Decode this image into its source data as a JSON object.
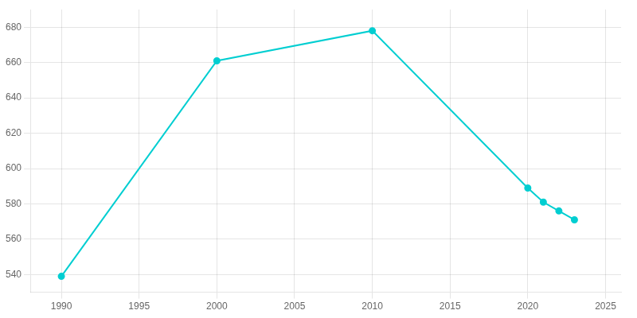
{
  "chart_data": {
    "type": "line",
    "x": [
      1990,
      2000,
      2010,
      2020,
      2021,
      2022,
      2023
    ],
    "values": [
      539,
      661,
      678,
      589,
      581,
      576,
      571
    ],
    "color": "#00CED1",
    "marker": "circle",
    "xlim": [
      1988,
      2026
    ],
    "xticks": [
      1990,
      1995,
      2000,
      2005,
      2010,
      2015,
      2020,
      2025
    ],
    "ylim": [
      530,
      690
    ],
    "yticks": [
      540,
      560,
      580,
      600,
      620,
      640,
      660,
      680
    ],
    "grid": true
  }
}
